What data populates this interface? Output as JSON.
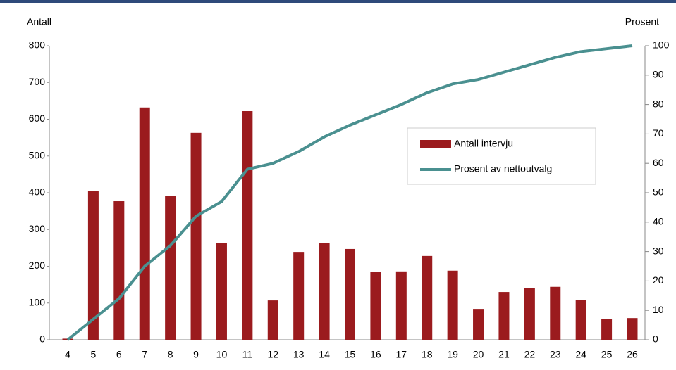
{
  "chart_data": {
    "type": "bar",
    "y_label": "Antall",
    "y2_label": "Prosent",
    "categories": [
      "4",
      "5",
      "6",
      "7",
      "8",
      "9",
      "10",
      "11",
      "12",
      "13",
      "14",
      "15",
      "16",
      "17",
      "18",
      "19",
      "20",
      "21",
      "22",
      "23",
      "24",
      "25",
      "26"
    ],
    "series": [
      {
        "name": "Antall intervju",
        "type": "bar",
        "color": "#9b1b1e",
        "values": [
          3,
          405,
          377,
          632,
          392,
          563,
          264,
          622,
          107,
          239,
          264,
          247,
          184,
          186,
          228,
          188,
          84,
          130,
          140,
          144,
          109,
          57,
          59
        ]
      },
      {
        "name": "Prosent av nettoutvalg",
        "type": "line",
        "axis": "y2",
        "color": "#4a9090",
        "values": [
          0,
          7,
          14,
          25,
          32,
          42,
          47,
          58,
          60,
          64,
          69,
          73,
          76.5,
          80,
          84,
          87,
          88.5,
          91,
          93.5,
          96,
          98,
          99,
          100
        ]
      }
    ],
    "ylim": [
      0,
      800
    ],
    "yticks": [
      0,
      100,
      200,
      300,
      400,
      500,
      600,
      700,
      800
    ],
    "y2lim": [
      0,
      100
    ],
    "y2ticks": [
      0,
      10,
      20,
      30,
      40,
      50,
      60,
      70,
      80,
      90,
      100
    ],
    "grid": false,
    "legend": "right"
  }
}
